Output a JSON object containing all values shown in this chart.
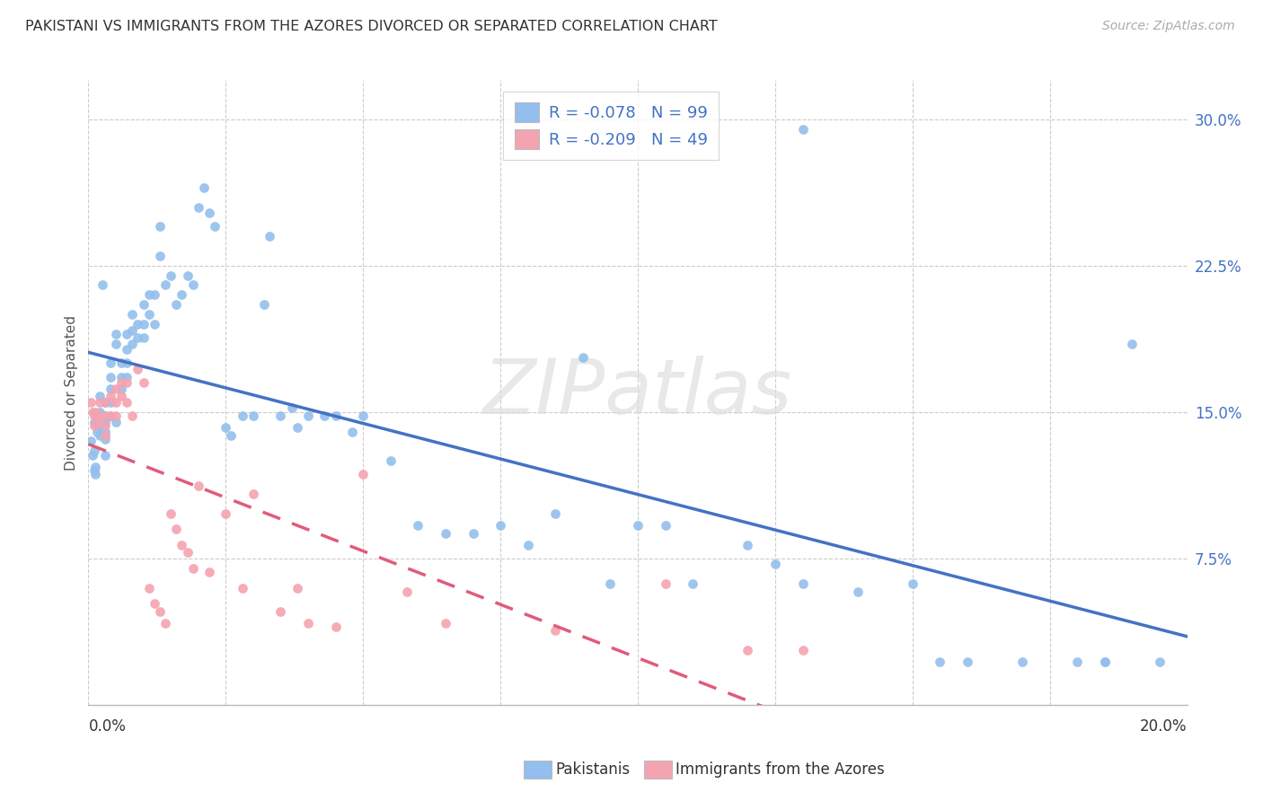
{
  "title": "PAKISTANI VS IMMIGRANTS FROM THE AZORES DIVORCED OR SEPARATED CORRELATION CHART",
  "source": "Source: ZipAtlas.com",
  "ylabel": "Divorced or Separated",
  "y_ticks": [
    0.075,
    0.15,
    0.225,
    0.3
  ],
  "y_tick_labels": [
    "7.5%",
    "15.0%",
    "22.5%",
    "30.0%"
  ],
  "x_ticks": [
    0.0,
    0.025,
    0.05,
    0.075,
    0.1,
    0.125,
    0.15,
    0.175,
    0.2
  ],
  "x_lim": [
    0.0,
    0.2
  ],
  "y_lim": [
    0.0,
    0.32
  ],
  "blue_color": "#92BFED",
  "pink_color": "#F4A3B0",
  "blue_line_color": "#4472C4",
  "pink_line_color": "#E05C7A",
  "legend_text_color": "#4472C4",
  "pakistanis_label": "Pakistanis",
  "azores_label": "Immigrants from the Azores",
  "blue_R": -0.078,
  "blue_N": 99,
  "pink_R": -0.209,
  "pink_N": 49,
  "watermark": "ZIPatlas",
  "background_color": "#FFFFFF",
  "grid_color": "#CCCCCC",
  "title_color": "#333333",
  "source_color": "#AAAAAA",
  "axis_label_color": "#555555",
  "right_tick_color": "#4472C4",
  "scatter_marker_size": 60,
  "blue_scatter_x": [
    0.0005,
    0.0007,
    0.001,
    0.001,
    0.001,
    0.0012,
    0.0013,
    0.0015,
    0.0015,
    0.002,
    0.002,
    0.002,
    0.002,
    0.0025,
    0.003,
    0.003,
    0.003,
    0.003,
    0.003,
    0.003,
    0.004,
    0.004,
    0.004,
    0.004,
    0.004,
    0.005,
    0.005,
    0.005,
    0.006,
    0.006,
    0.006,
    0.007,
    0.007,
    0.007,
    0.007,
    0.008,
    0.008,
    0.008,
    0.009,
    0.009,
    0.01,
    0.01,
    0.01,
    0.011,
    0.011,
    0.012,
    0.012,
    0.013,
    0.013,
    0.014,
    0.015,
    0.016,
    0.017,
    0.018,
    0.019,
    0.02,
    0.021,
    0.022,
    0.023,
    0.025,
    0.026,
    0.028,
    0.03,
    0.032,
    0.033,
    0.035,
    0.037,
    0.038,
    0.04,
    0.043,
    0.045,
    0.048,
    0.05,
    0.055,
    0.06,
    0.065,
    0.07,
    0.075,
    0.08,
    0.085,
    0.09,
    0.095,
    0.1,
    0.105,
    0.11,
    0.12,
    0.125,
    0.13,
    0.14,
    0.15,
    0.155,
    0.16,
    0.17,
    0.18,
    0.185,
    0.19,
    0.195,
    0.13,
    0.185
  ],
  "blue_scatter_y": [
    0.135,
    0.128,
    0.145,
    0.13,
    0.12,
    0.122,
    0.118,
    0.148,
    0.14,
    0.158,
    0.15,
    0.143,
    0.138,
    0.215,
    0.155,
    0.148,
    0.145,
    0.14,
    0.136,
    0.128,
    0.175,
    0.168,
    0.162,
    0.155,
    0.148,
    0.19,
    0.185,
    0.145,
    0.175,
    0.168,
    0.162,
    0.19,
    0.182,
    0.175,
    0.168,
    0.2,
    0.192,
    0.185,
    0.195,
    0.188,
    0.205,
    0.195,
    0.188,
    0.21,
    0.2,
    0.21,
    0.195,
    0.245,
    0.23,
    0.215,
    0.22,
    0.205,
    0.21,
    0.22,
    0.215,
    0.255,
    0.265,
    0.252,
    0.245,
    0.142,
    0.138,
    0.148,
    0.148,
    0.205,
    0.24,
    0.148,
    0.152,
    0.142,
    0.148,
    0.148,
    0.148,
    0.14,
    0.148,
    0.125,
    0.092,
    0.088,
    0.088,
    0.092,
    0.082,
    0.098,
    0.178,
    0.062,
    0.092,
    0.092,
    0.062,
    0.082,
    0.072,
    0.062,
    0.058,
    0.062,
    0.022,
    0.022,
    0.022,
    0.022,
    0.022,
    0.185,
    0.022,
    0.295,
    0.022
  ],
  "pink_scatter_x": [
    0.0005,
    0.0007,
    0.001,
    0.001,
    0.0012,
    0.0015,
    0.002,
    0.002,
    0.003,
    0.003,
    0.003,
    0.003,
    0.004,
    0.004,
    0.005,
    0.005,
    0.005,
    0.006,
    0.006,
    0.007,
    0.007,
    0.008,
    0.009,
    0.01,
    0.011,
    0.012,
    0.013,
    0.014,
    0.015,
    0.016,
    0.017,
    0.018,
    0.019,
    0.02,
    0.022,
    0.025,
    0.028,
    0.03,
    0.035,
    0.038,
    0.04,
    0.045,
    0.05,
    0.058,
    0.065,
    0.085,
    0.105,
    0.12,
    0.13
  ],
  "pink_scatter_y": [
    0.155,
    0.15,
    0.148,
    0.143,
    0.15,
    0.145,
    0.155,
    0.148,
    0.155,
    0.148,
    0.143,
    0.138,
    0.158,
    0.148,
    0.162,
    0.155,
    0.148,
    0.165,
    0.158,
    0.165,
    0.155,
    0.148,
    0.172,
    0.165,
    0.06,
    0.052,
    0.048,
    0.042,
    0.098,
    0.09,
    0.082,
    0.078,
    0.07,
    0.112,
    0.068,
    0.098,
    0.06,
    0.108,
    0.048,
    0.06,
    0.042,
    0.04,
    0.118,
    0.058,
    0.042,
    0.038,
    0.062,
    0.028,
    0.028
  ]
}
